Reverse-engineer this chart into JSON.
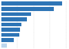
{
  "values": [
    75,
    65,
    37,
    32,
    25,
    23,
    22,
    15,
    7
  ],
  "bar_color_main": "#2E75B6",
  "bar_color_last": "#BDD7EE",
  "background_color": "#ffffff",
  "xlim": [
    0,
    82
  ],
  "bar_height": 0.72,
  "n_bars": 9,
  "grid_lines": [
    20,
    40,
    60,
    80
  ],
  "grid_color": "#d0d0d0",
  "grid_linewidth": 0.3
}
